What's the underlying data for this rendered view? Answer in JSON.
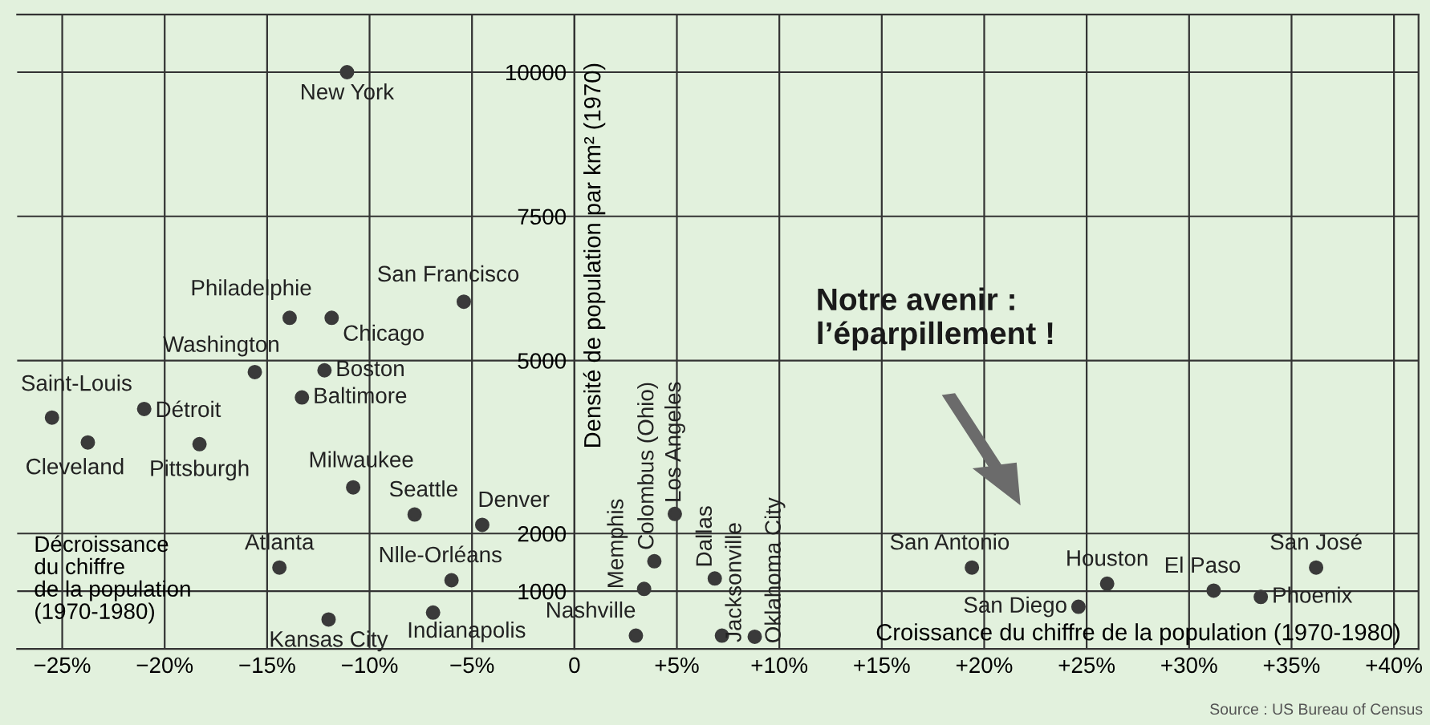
{
  "chart_data": {
    "type": "scatter",
    "xlabel": "Croissance du chiffre de la population (1970-1980)",
    "ylabel": "Densité de population par km² (1970)",
    "x": [
      -11.1,
      -13.9,
      -11.85,
      -5.4,
      -15.6,
      -12.2,
      -13.3,
      -25.5,
      -21.0,
      -23.75,
      -18.3,
      -10.8,
      -7.8,
      -4.5,
      -14.4,
      -6.0,
      -12.0,
      -6.9,
      3.4,
      3.9,
      4.9,
      3.0,
      6.85,
      7.2,
      8.8,
      19.4,
      26.0,
      31.2,
      36.2,
      33.5,
      24.6
    ],
    "series": [
      {
        "color": "#3a3a3a",
        "values": [
          10000,
          5740,
          5740,
          6020,
          4800,
          4830,
          4360,
          4010,
          4160,
          3580,
          3550,
          2800,
          2330,
          2150,
          1410,
          1190,
          510,
          630,
          1040,
          1520,
          2340,
          230,
          1220,
          230,
          210,
          1410,
          1130,
          1010,
          1410,
          900,
          730
        ]
      }
    ],
    "marker": "circle",
    "xlim": [
      -27.2,
      41.2
    ],
    "ylim": [
      0,
      11000
    ],
    "xticks": [
      {
        "value": -25,
        "label": "−25%"
      },
      {
        "value": -20,
        "label": "−20%"
      },
      {
        "value": -15,
        "label": "−15%"
      },
      {
        "value": -10,
        "label": "−10%"
      },
      {
        "value": -5,
        "label": "−5%"
      },
      0,
      {
        "value": 5,
        "label": "+5%"
      },
      {
        "value": 10,
        "label": "+10%"
      },
      {
        "value": 15,
        "label": "+15%"
      },
      {
        "value": 20,
        "label": "+20%"
      },
      {
        "value": 25,
        "label": "+25%"
      },
      {
        "value": 30,
        "label": "+30%"
      },
      {
        "value": 35,
        "label": "+35%"
      },
      {
        "value": 40,
        "label": "+40%"
      }
    ],
    "yticks": [
      1000,
      2000,
      5000,
      7500,
      10000
    ],
    "grid": true,
    "annotations": [
      {
        "text": "New York",
        "x": -11.1,
        "y": 10000
      },
      {
        "text": "Philadelphie",
        "x": -13.9,
        "y": 5740
      },
      {
        "text": "Chicago",
        "x": -11.85,
        "y": 5740
      },
      {
        "text": "San Francisco",
        "x": -5.4,
        "y": 6020
      },
      {
        "text": "Washington",
        "x": -15.6,
        "y": 4800
      },
      {
        "text": "Boston",
        "x": -12.2,
        "y": 4830
      },
      {
        "text": "Baltimore",
        "x": -13.3,
        "y": 4360
      },
      {
        "text": "Saint-Louis",
        "x": -25.5,
        "y": 4010
      },
      {
        "text": "Détroit",
        "x": -21.0,
        "y": 4160
      },
      {
        "text": "Cleveland",
        "x": -23.75,
        "y": 3580
      },
      {
        "text": "Pittsburgh",
        "x": -18.3,
        "y": 3550
      },
      {
        "text": "Milwaukee",
        "x": -10.8,
        "y": 2800
      },
      {
        "text": "Seattle",
        "x": -7.8,
        "y": 2330
      },
      {
        "text": "Denver",
        "x": -4.5,
        "y": 2150
      },
      {
        "text": "Atlanta",
        "x": -14.4,
        "y": 1410
      },
      {
        "text": "Nlle-Orléans",
        "x": -6.0,
        "y": 1190
      },
      {
        "text": "Kansas City",
        "x": -12.0,
        "y": 510
      },
      {
        "text": "Indianapolis",
        "x": -6.9,
        "y": 630
      },
      {
        "text": "Memphis",
        "x": 3.4,
        "y": 1040
      },
      {
        "text": "Colombus (Ohio)",
        "x": 3.9,
        "y": 1520
      },
      {
        "text": "Los Angeles",
        "x": 4.9,
        "y": 2340
      },
      {
        "text": "Nashville",
        "x": 3.0,
        "y": 230
      },
      {
        "text": "Dallas",
        "x": 6.85,
        "y": 1220
      },
      {
        "text": "Jacksonville",
        "x": 7.2,
        "y": 230
      },
      {
        "text": "Oklahoma City",
        "x": 8.8,
        "y": 210
      },
      {
        "text": "San Antonio",
        "x": 19.4,
        "y": 1410
      },
      {
        "text": "Houston",
        "x": 26.0,
        "y": 1130
      },
      {
        "text": "El Paso",
        "x": 31.2,
        "y": 1010
      },
      {
        "text": "San José",
        "x": 36.2,
        "y": 1410
      },
      {
        "text": "Phoenix",
        "x": 33.5,
        "y": 900
      },
      {
        "text": "San Diego",
        "x": 24.6,
        "y": 730
      },
      "Notre avenir :\nl’éparpillement !",
      "Décroissance\ndu chiffre\nde la population\n(1970-1980)",
      "Source : US Bureau of Census"
    ]
  }
}
